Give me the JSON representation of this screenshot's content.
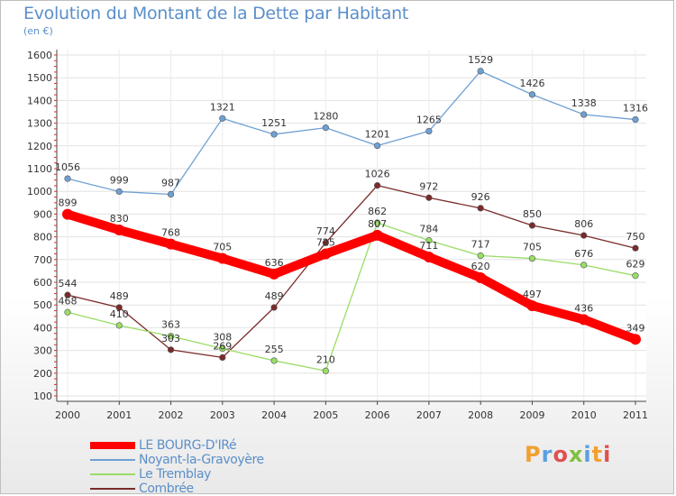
{
  "header": {
    "title": "Evolution du Montant de la Dette par Habitant",
    "subtitle": "(en €)"
  },
  "logo": {
    "text": "Proxiti",
    "colors": [
      "#f0a030",
      "#5aa0e0",
      "#e05050",
      "#80c040",
      "#5aa0e0",
      "#f0a030",
      "#e05050"
    ]
  },
  "chart_data": {
    "type": "line",
    "x": [
      "2000",
      "2001",
      "2002",
      "2003",
      "2004",
      "2005",
      "2006",
      "2007",
      "2008",
      "2009",
      "2010",
      "2011"
    ],
    "ylim": [
      100,
      1600
    ],
    "yticks": [
      "100",
      "200",
      "300",
      "400",
      "500",
      "600",
      "700",
      "800",
      "900",
      "1000",
      "1100",
      "1200",
      "1300",
      "1400",
      "1500",
      "1600"
    ],
    "grid": true,
    "legend_position": "bottom-left",
    "series": [
      {
        "name": "LE BOURG-D'IRé",
        "color": "#ff0000",
        "values": [
          899,
          830,
          768,
          705,
          636,
          725,
          807,
          711,
          620,
          497,
          436,
          349
        ],
        "labels": [
          "899",
          "830",
          "768",
          "705",
          "636",
          "725",
          "807",
          "711",
          "620",
          "497",
          "436",
          "349"
        ]
      },
      {
        "name": "Noyant-la-Gravoyère",
        "color": "#6fa0d3",
        "values": [
          1056,
          999,
          987,
          1321,
          1251,
          1280,
          1201,
          1265,
          1529,
          1426,
          1338,
          1316
        ],
        "labels": [
          "1056",
          "999",
          "987",
          "1321",
          "1251",
          "1280",
          "1201",
          "1265",
          "1529",
          "1426",
          "1338",
          "1316"
        ]
      },
      {
        "name": "Le Tremblay",
        "color": "#99dd66",
        "values": [
          468,
          410,
          363,
          308,
          255,
          210,
          862,
          784,
          717,
          705,
          676,
          629
        ],
        "labels": [
          "468",
          "410",
          "363",
          "308",
          "255",
          "210",
          "862",
          "784",
          "717",
          "705",
          "676",
          "629"
        ]
      },
      {
        "name": "Combrée",
        "color": "#7a2a2a",
        "values": [
          544,
          489,
          303,
          269,
          489,
          774,
          1026,
          972,
          926,
          850,
          806,
          750
        ],
        "labels": [
          "544",
          "489",
          "303",
          "269",
          "489",
          "774",
          "1026",
          "972",
          "926",
          "850",
          "806",
          "750"
        ]
      }
    ]
  }
}
